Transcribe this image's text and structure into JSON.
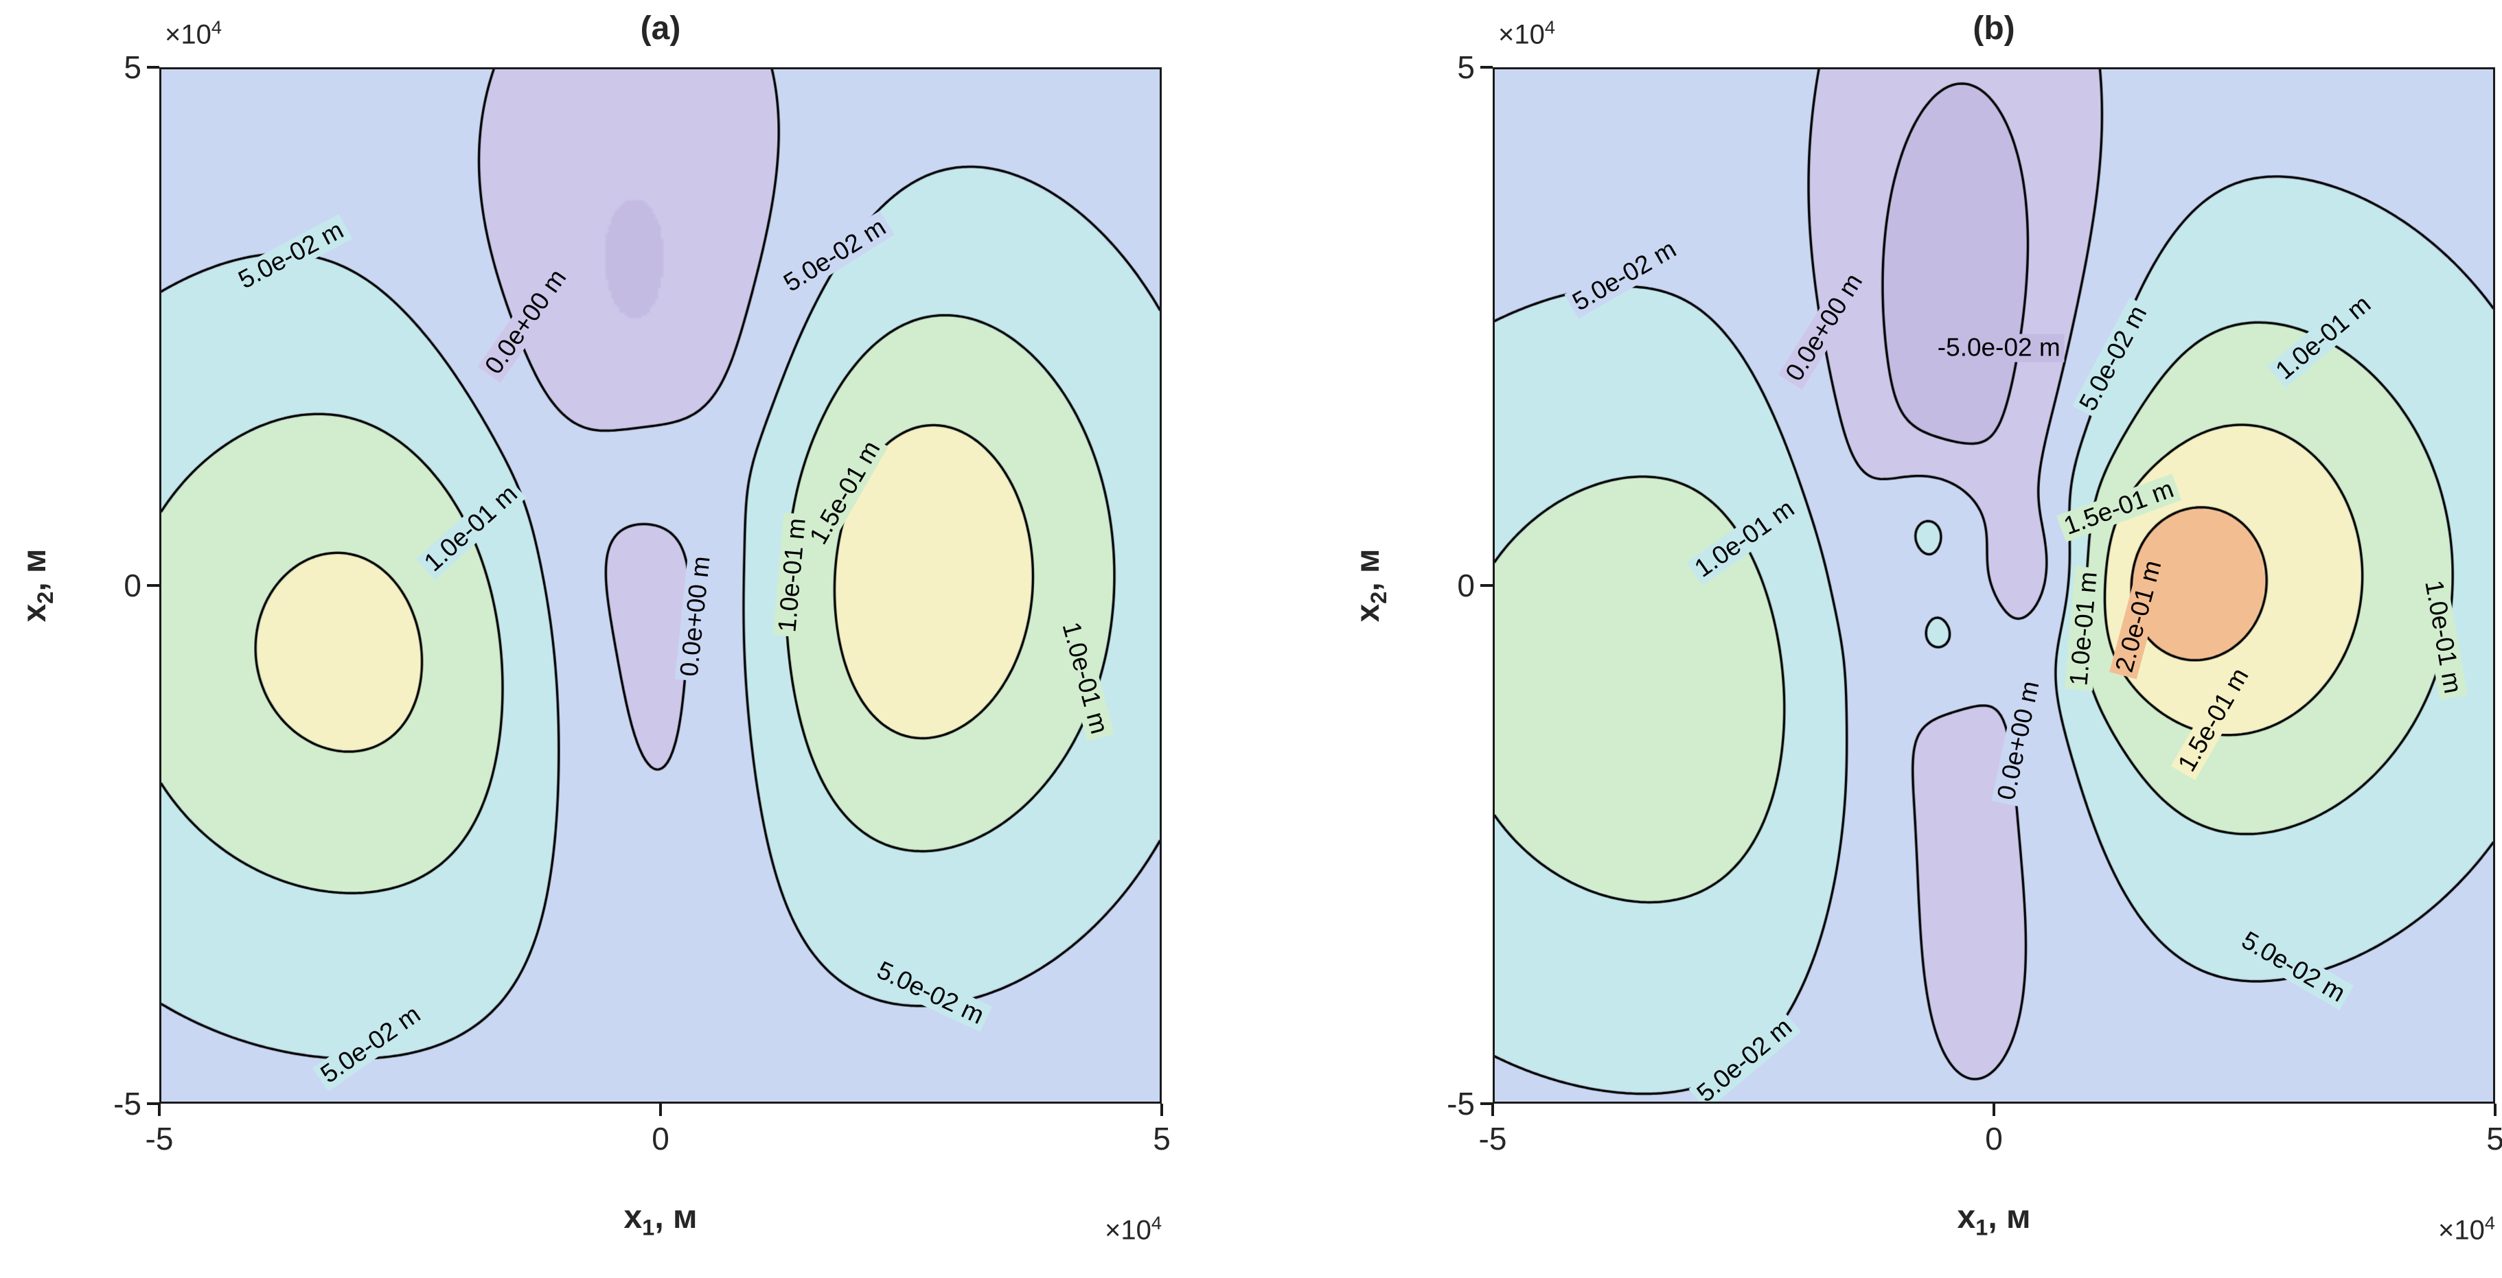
{
  "chart_data": {
    "type": "contour",
    "x_axis": {
      "label": {
        "base": "x",
        "sub": "1",
        "rest": ", м"
      },
      "ticks": [
        "-5",
        "0",
        "5"
      ],
      "exponent": {
        "prefix": "×10",
        "sup": "4"
      },
      "range": [
        -5,
        5
      ]
    },
    "y_axis": {
      "label": {
        "base": "x",
        "sub": "2",
        "rest": ", м"
      },
      "ticks": [
        "5",
        "0",
        "-5"
      ],
      "exponent": {
        "prefix": "×10",
        "sup": "4"
      },
      "range": [
        -5,
        5
      ]
    },
    "contour_line_color": "#000000",
    "colormap": {
      "thresholds": [
        -0.05,
        0,
        0.05,
        0.1,
        0.15,
        0.2
      ],
      "colors": [
        "#c3bbe2",
        "#cdc8ea",
        "#cad7f3",
        "#c5e8ed",
        "#d1edce",
        "#f5f1c5",
        "#f3bd92"
      ]
    },
    "panels": [
      {
        "title": "(a)",
        "levels": [
          0,
          0.05,
          0.1,
          0.15
        ],
        "background": 0.027,
        "sources": [
          {
            "cx": -3.0,
            "cy": -0.6,
            "sx": 2.1,
            "sy": 2.1,
            "amp": 0.14
          },
          {
            "cx": 2.5,
            "cy": 0.1,
            "sx": 1.6,
            "sy": 2.1,
            "amp": 0.165
          },
          {
            "cx": -0.2,
            "cy": 2.8,
            "sx": 1.3,
            "sy": 2.2,
            "amp": -0.095
          },
          {
            "cx": 0.0,
            "cy": -0.8,
            "sx": 1.0,
            "sy": 1.9,
            "amp": -0.105
          },
          {
            "cx": -0.15,
            "cy": 1.2,
            "sx": 0.55,
            "sy": 0.5,
            "amp": 0.045
          }
        ],
        "labels": [
          {
            "text": "5.0e-02 m",
            "x": -3.7,
            "y": 3.2,
            "rot": -28
          },
          {
            "text": "0.0e+00 m",
            "x": -1.35,
            "y": 2.55,
            "rot": -55
          },
          {
            "text": "5.0e-02 m",
            "x": 1.75,
            "y": 3.2,
            "rot": -32
          },
          {
            "text": "1.0e-01 m",
            "x": -1.9,
            "y": 0.55,
            "rot": -42
          },
          {
            "text": "1.5e-01 m",
            "x": 1.85,
            "y": 0.9,
            "rot": -60
          },
          {
            "text": "1.0e-01 m",
            "x": 1.32,
            "y": 0.1,
            "rot": -85
          },
          {
            "text": "0.0e+00 m",
            "x": 0.35,
            "y": -0.3,
            "rot": -84
          },
          {
            "text": "1.0e-01 m",
            "x": 4.25,
            "y": -0.9,
            "rot": 75
          },
          {
            "text": "5.0e-02 m",
            "x": -2.9,
            "y": -4.45,
            "rot": -35
          },
          {
            "text": "5.0e-02 m",
            "x": 2.7,
            "y": -3.95,
            "rot": 25
          }
        ]
      },
      {
        "title": "(b)",
        "levels": [
          -0.05,
          0,
          0.05,
          0.1,
          0.15,
          0.2
        ],
        "background": 0.027,
        "sources": [
          {
            "cx": -3.3,
            "cy": -1.0,
            "sx": 2.2,
            "sy": 2.2,
            "amp": 0.115
          },
          {
            "cx": 2.4,
            "cy": 0.1,
            "sx": 1.75,
            "sy": 2.0,
            "amp": 0.16
          },
          {
            "cx": 1.5,
            "cy": 0.0,
            "sx": 0.7,
            "sy": 0.75,
            "amp": 0.075
          },
          {
            "cx": -0.3,
            "cy": 0.9,
            "sx": 1.05,
            "sy": 3.4,
            "amp": -0.16
          },
          {
            "cx": -0.6,
            "cy": 0.6,
            "sx": 0.4,
            "sy": 0.45,
            "amp": 0.095
          },
          {
            "cx": -0.5,
            "cy": -0.5,
            "sx": 0.4,
            "sy": 0.45,
            "amp": 0.075
          },
          {
            "cx": 0.55,
            "cy": 0.1,
            "sx": 0.35,
            "sy": 0.5,
            "amp": -0.055
          }
        ],
        "labels": [
          {
            "text": "5.0e-02 m",
            "x": -3.7,
            "y": 3.0,
            "rot": -30
          },
          {
            "text": "0.0e+00 m",
            "x": -1.7,
            "y": 2.5,
            "rot": -58
          },
          {
            "text": "-5.0e-02 m",
            "x": 0.05,
            "y": 2.3,
            "rot": 0
          },
          {
            "text": "5.0e-02 m",
            "x": 1.2,
            "y": 2.2,
            "rot": -62
          },
          {
            "text": "1.0e-01 m",
            "x": 3.3,
            "y": 2.4,
            "rot": -40
          },
          {
            "text": "1.0e-01 m",
            "x": -2.5,
            "y": 0.45,
            "rot": -35
          },
          {
            "text": "1.5e-01 m",
            "x": 1.25,
            "y": 0.75,
            "rot": -20
          },
          {
            "text": "1.0e-01 m",
            "x": 0.9,
            "y": -0.42,
            "rot": -85
          },
          {
            "text": "0.0e+00 m",
            "x": 0.25,
            "y": -1.5,
            "rot": -78
          },
          {
            "text": "2.0e-01 m",
            "x": 1.45,
            "y": -0.3,
            "rot": -75
          },
          {
            "text": "1.5e-01 m",
            "x": 2.2,
            "y": -1.3,
            "rot": -60
          },
          {
            "text": "1.0e-01 m",
            "x": 4.5,
            "y": -0.5,
            "rot": 80
          },
          {
            "text": "5.0e-02 m",
            "x": 3.0,
            "y": -3.7,
            "rot": 30
          },
          {
            "text": "5.0e-02 m",
            "x": -2.5,
            "y": -4.6,
            "rot": -40
          }
        ]
      }
    ]
  }
}
